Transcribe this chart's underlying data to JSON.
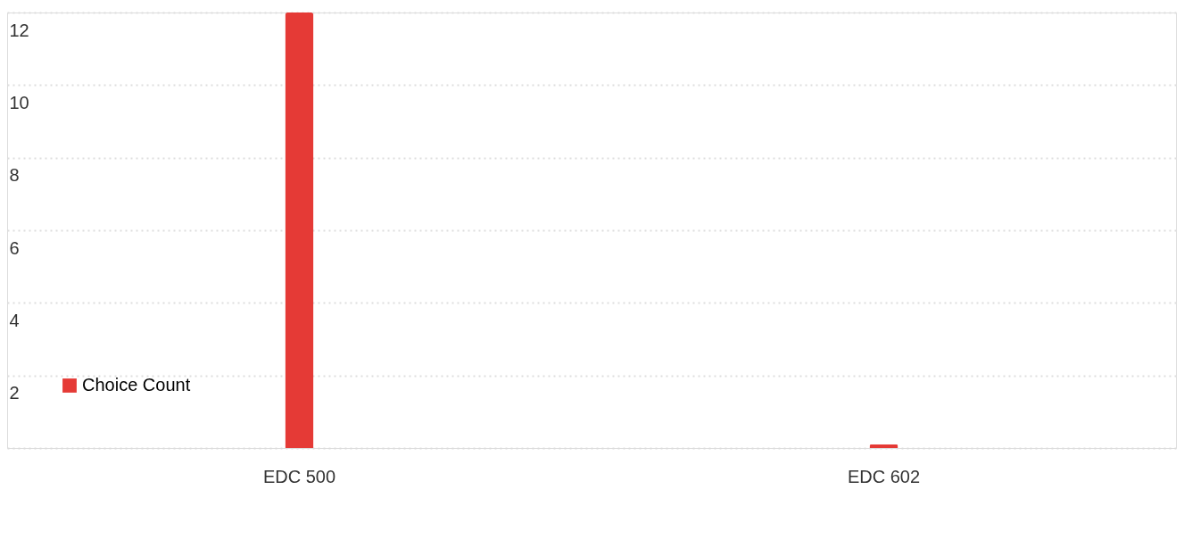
{
  "chart_data": {
    "type": "bar",
    "categories": [
      "EDC 500",
      "EDC 602"
    ],
    "series": [
      {
        "name": "Choice Count",
        "color": "#e53a36",
        "values": [
          12,
          0.1
        ]
      }
    ],
    "ylim": [
      0,
      12
    ],
    "yticks": [
      {
        "value": 0,
        "label": null
      },
      2,
      4,
      6,
      8,
      10,
      12
    ],
    "grid": "y",
    "legend": "bottom left"
  }
}
